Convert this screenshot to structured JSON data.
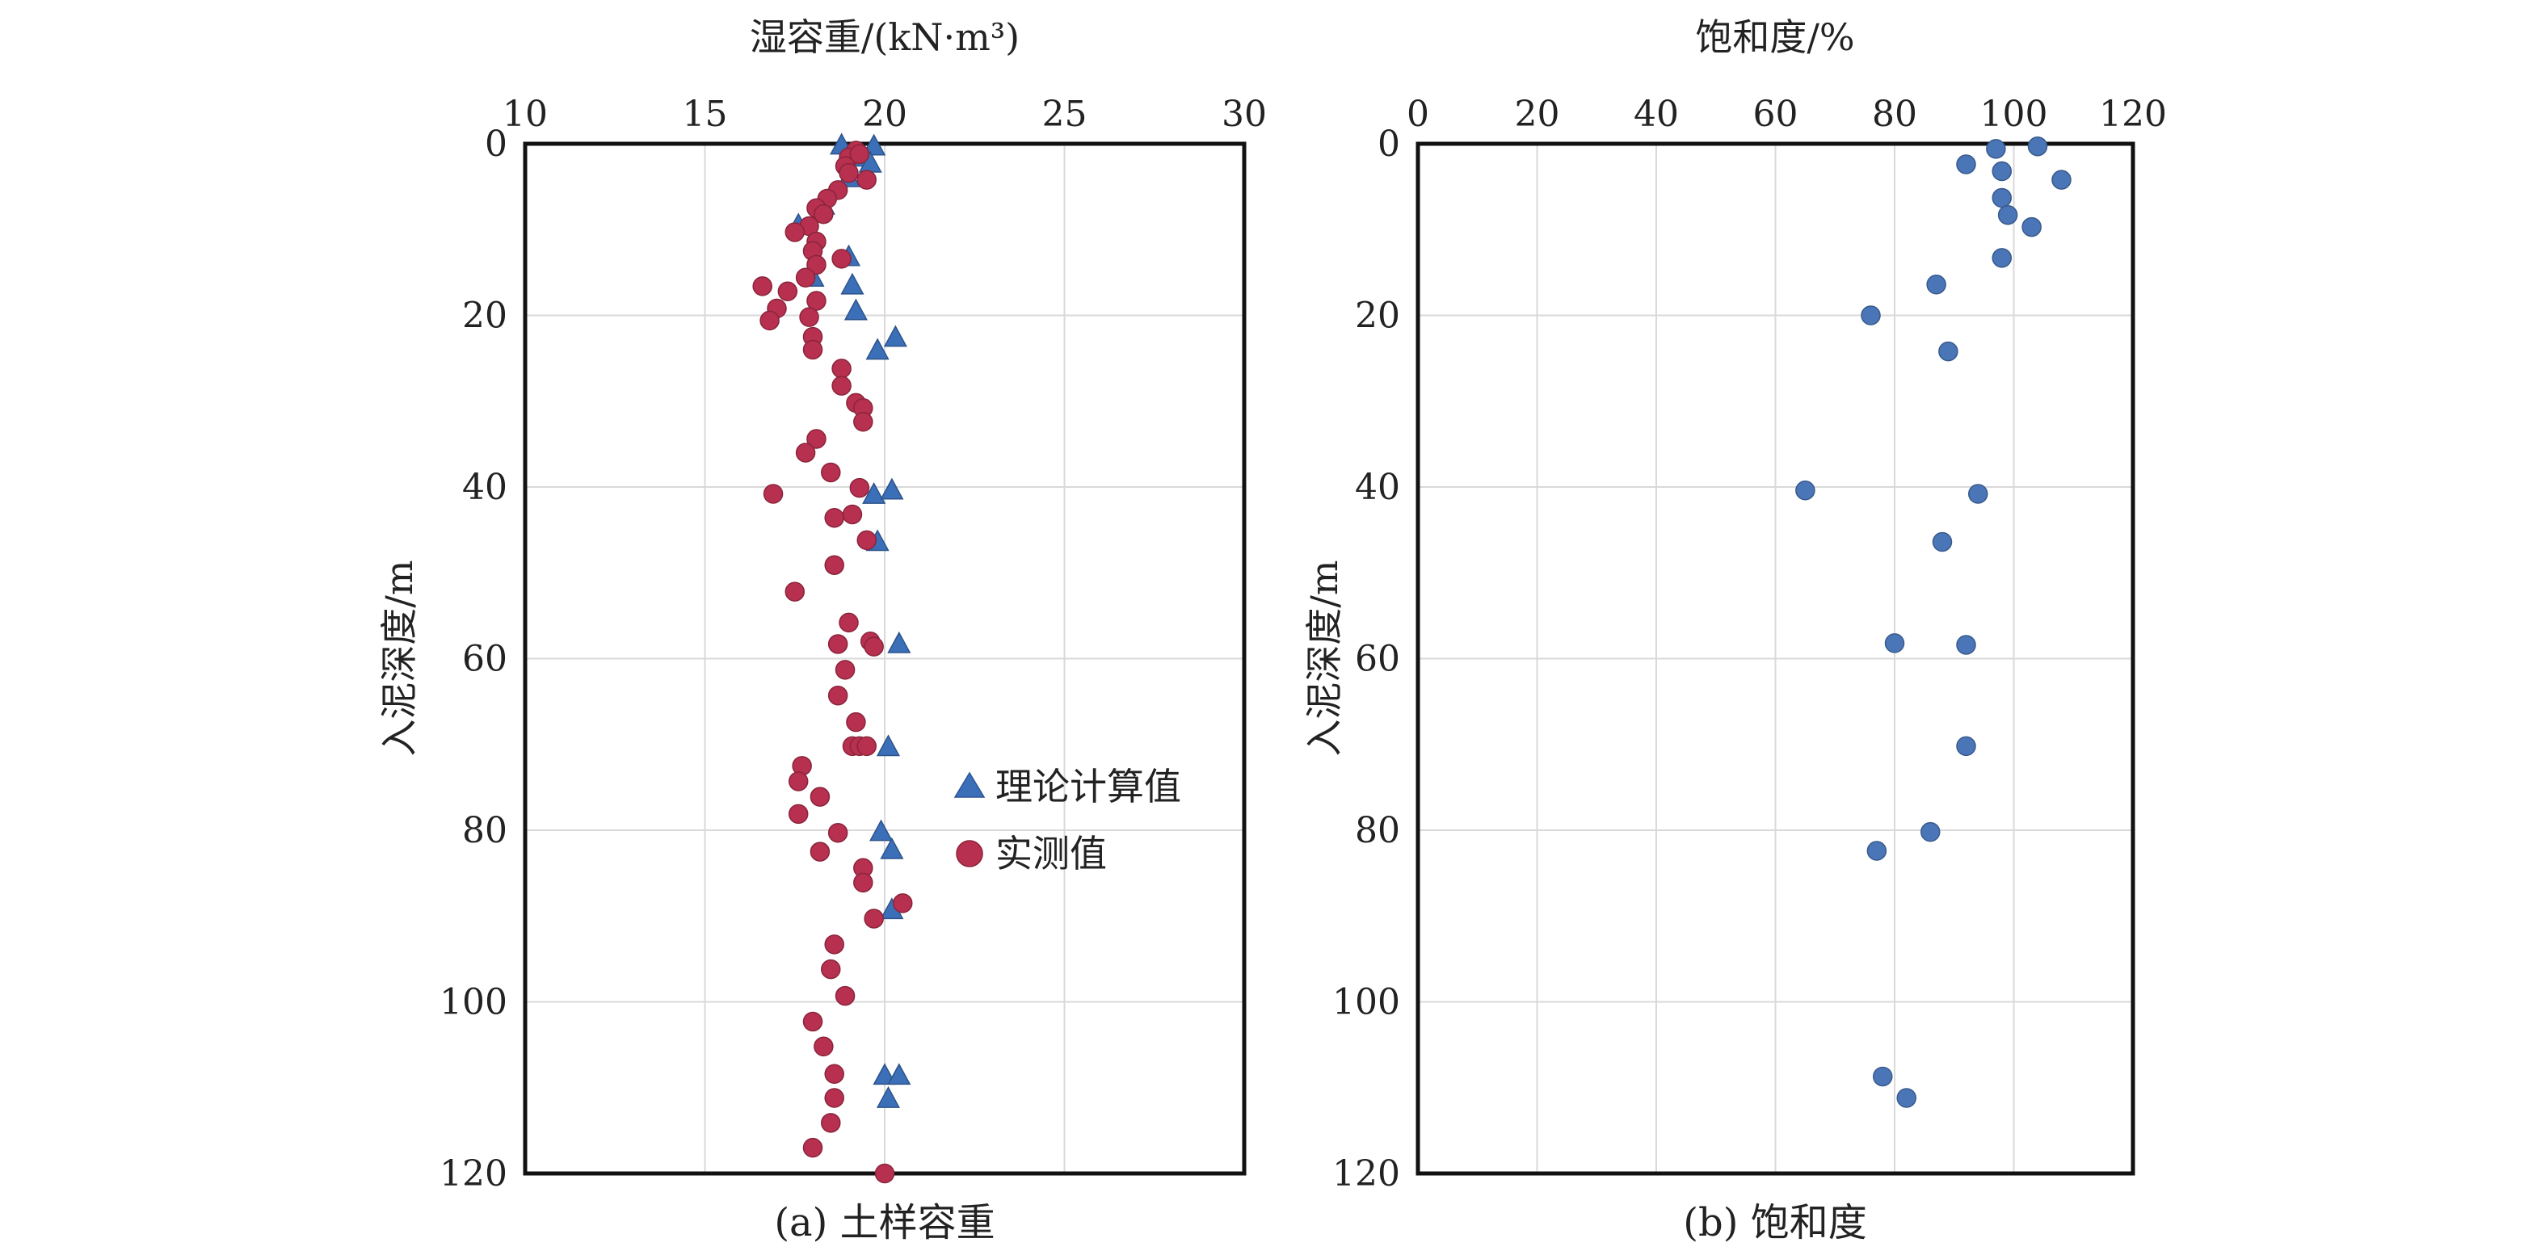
{
  "chart_data": [
    {
      "type": "scatter",
      "caption": "(a) 土样容重",
      "xlabel": "湿容重/(kN·m³)",
      "ylabel": "入泥深度/m",
      "xlim": [
        10,
        30
      ],
      "ylim": [
        0,
        120
      ],
      "y_inverted": true,
      "x_axis_position": "top",
      "xticks": [
        10,
        15,
        20,
        25,
        30
      ],
      "yticks": [
        0,
        20,
        40,
        60,
        80,
        100,
        120
      ],
      "grid": true,
      "legend_position": "right-middle",
      "series": [
        {
          "name": "理论计算值",
          "marker": "triangle",
          "color": "#3b6fb8",
          "points": [
            {
              "x": 18.8,
              "y": 0.2
            },
            {
              "x": 19.7,
              "y": 0.3
            },
            {
              "x": 19.2,
              "y": 1.6
            },
            {
              "x": 19.6,
              "y": 2.3
            },
            {
              "x": 19.0,
              "y": 4.0
            },
            {
              "x": 18.3,
              "y": 7.2
            },
            {
              "x": 17.6,
              "y": 9.5
            },
            {
              "x": 19.0,
              "y": 13.2
            },
            {
              "x": 18.0,
              "y": 15.6
            },
            {
              "x": 19.1,
              "y": 16.5
            },
            {
              "x": 19.2,
              "y": 19.5
            },
            {
              "x": 20.3,
              "y": 22.6
            },
            {
              "x": 19.8,
              "y": 24.1
            },
            {
              "x": 19.7,
              "y": 40.9
            },
            {
              "x": 20.2,
              "y": 40.4
            },
            {
              "x": 19.8,
              "y": 46.4
            },
            {
              "x": 20.4,
              "y": 58.3
            },
            {
              "x": 20.1,
              "y": 70.3
            },
            {
              "x": 19.9,
              "y": 80.2
            },
            {
              "x": 20.2,
              "y": 82.3
            },
            {
              "x": 20.2,
              "y": 89.3
            },
            {
              "x": 20.0,
              "y": 108.6
            },
            {
              "x": 20.4,
              "y": 108.6
            },
            {
              "x": 20.1,
              "y": 111.3
            }
          ]
        },
        {
          "name": "实测值",
          "marker": "circle",
          "color": "#b8304f",
          "points": [
            {
              "x": 19.2,
              "y": 0.8
            },
            {
              "x": 19.0,
              "y": 1.6
            },
            {
              "x": 19.3,
              "y": 1.2
            },
            {
              "x": 18.9,
              "y": 2.6
            },
            {
              "x": 19.0,
              "y": 3.4
            },
            {
              "x": 19.5,
              "y": 4.2
            },
            {
              "x": 18.7,
              "y": 5.4
            },
            {
              "x": 18.4,
              "y": 6.4
            },
            {
              "x": 18.1,
              "y": 7.5
            },
            {
              "x": 18.3,
              "y": 8.2
            },
            {
              "x": 17.9,
              "y": 9.6
            },
            {
              "x": 17.5,
              "y": 10.3
            },
            {
              "x": 18.1,
              "y": 11.4
            },
            {
              "x": 18.0,
              "y": 12.5
            },
            {
              "x": 18.8,
              "y": 13.4
            },
            {
              "x": 18.1,
              "y": 14.1
            },
            {
              "x": 17.8,
              "y": 15.6
            },
            {
              "x": 16.6,
              "y": 16.6
            },
            {
              "x": 17.3,
              "y": 17.2
            },
            {
              "x": 18.1,
              "y": 18.3
            },
            {
              "x": 17.0,
              "y": 19.2
            },
            {
              "x": 17.9,
              "y": 20.2
            },
            {
              "x": 16.8,
              "y": 20.6
            },
            {
              "x": 18.0,
              "y": 22.5
            },
            {
              "x": 18.0,
              "y": 24.0
            },
            {
              "x": 18.8,
              "y": 26.2
            },
            {
              "x": 18.8,
              "y": 28.2
            },
            {
              "x": 19.2,
              "y": 30.2
            },
            {
              "x": 19.4,
              "y": 30.8
            },
            {
              "x": 19.4,
              "y": 32.4
            },
            {
              "x": 18.1,
              "y": 34.4
            },
            {
              "x": 17.8,
              "y": 36.0
            },
            {
              "x": 18.5,
              "y": 38.3
            },
            {
              "x": 19.3,
              "y": 40.1
            },
            {
              "x": 16.9,
              "y": 40.8
            },
            {
              "x": 19.1,
              "y": 43.2
            },
            {
              "x": 18.6,
              "y": 43.6
            },
            {
              "x": 19.5,
              "y": 46.2
            },
            {
              "x": 18.6,
              "y": 49.1
            },
            {
              "x": 17.5,
              "y": 52.2
            },
            {
              "x": 19.0,
              "y": 55.8
            },
            {
              "x": 19.6,
              "y": 58.0
            },
            {
              "x": 18.7,
              "y": 58.3
            },
            {
              "x": 19.7,
              "y": 58.6
            },
            {
              "x": 18.9,
              "y": 61.3
            },
            {
              "x": 18.7,
              "y": 64.3
            },
            {
              "x": 19.2,
              "y": 67.4
            },
            {
              "x": 19.1,
              "y": 70.2
            },
            {
              "x": 19.3,
              "y": 70.2
            },
            {
              "x": 19.5,
              "y": 70.2
            },
            {
              "x": 17.7,
              "y": 72.5
            },
            {
              "x": 17.6,
              "y": 74.3
            },
            {
              "x": 18.2,
              "y": 76.1
            },
            {
              "x": 17.6,
              "y": 78.1
            },
            {
              "x": 18.7,
              "y": 80.3
            },
            {
              "x": 18.2,
              "y": 82.5
            },
            {
              "x": 19.4,
              "y": 84.4
            },
            {
              "x": 19.4,
              "y": 86.1
            },
            {
              "x": 20.5,
              "y": 88.5
            },
            {
              "x": 19.7,
              "y": 90.3
            },
            {
              "x": 18.6,
              "y": 93.3
            },
            {
              "x": 18.5,
              "y": 96.2
            },
            {
              "x": 18.9,
              "y": 99.3
            },
            {
              "x": 18.0,
              "y": 102.3
            },
            {
              "x": 18.3,
              "y": 105.2
            },
            {
              "x": 18.6,
              "y": 108.4
            },
            {
              "x": 18.6,
              "y": 111.2
            },
            {
              "x": 18.5,
              "y": 114.1
            },
            {
              "x": 18.0,
              "y": 117.0
            },
            {
              "x": 20.0,
              "y": 120.0
            }
          ]
        }
      ]
    },
    {
      "type": "scatter",
      "caption": "(b) 饱和度",
      "xlabel": "饱和度/%",
      "ylabel": "入泥深度/m",
      "xlim": [
        0,
        120
      ],
      "ylim": [
        0,
        120
      ],
      "y_inverted": true,
      "x_axis_position": "top",
      "xticks": [
        0,
        20,
        40,
        60,
        80,
        100,
        120
      ],
      "yticks": [
        0,
        20,
        40,
        60,
        80,
        100,
        120
      ],
      "grid": true,
      "series": [
        {
          "marker": "circle",
          "color": "#4a76b8",
          "points": [
            {
              "x": 104,
              "y": 0.3
            },
            {
              "x": 97,
              "y": 0.6
            },
            {
              "x": 92,
              "y": 2.4
            },
            {
              "x": 98,
              "y": 3.2
            },
            {
              "x": 108,
              "y": 4.2
            },
            {
              "x": 98,
              "y": 6.3
            },
            {
              "x": 99,
              "y": 8.3
            },
            {
              "x": 103,
              "y": 9.7
            },
            {
              "x": 98,
              "y": 13.3
            },
            {
              "x": 87,
              "y": 16.4
            },
            {
              "x": 76,
              "y": 20.0
            },
            {
              "x": 89,
              "y": 24.2
            },
            {
              "x": 65,
              "y": 40.4
            },
            {
              "x": 94,
              "y": 40.8
            },
            {
              "x": 88,
              "y": 46.4
            },
            {
              "x": 80,
              "y": 58.2
            },
            {
              "x": 92,
              "y": 58.4
            },
            {
              "x": 92,
              "y": 70.2
            },
            {
              "x": 86,
              "y": 80.2
            },
            {
              "x": 77,
              "y": 82.4
            },
            {
              "x": 78,
              "y": 108.7
            },
            {
              "x": 82,
              "y": 111.2
            }
          ]
        }
      ]
    }
  ]
}
